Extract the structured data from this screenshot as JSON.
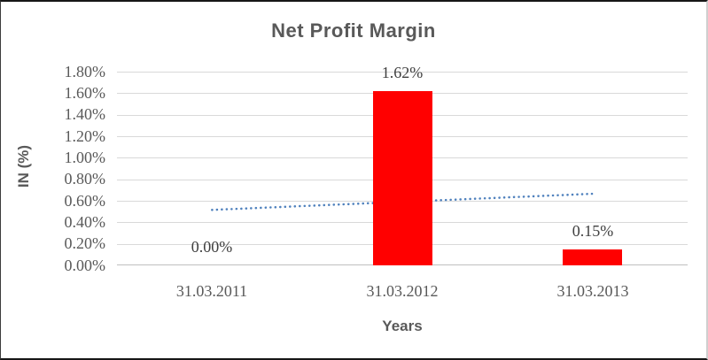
{
  "chart_data": {
    "type": "bar",
    "title": "Net Profit Margin",
    "xlabel": "Years",
    "ylabel": "IN (%)",
    "categories": [
      "31.03.2011",
      "31.03.2012",
      "31.03.2013"
    ],
    "values": [
      0.0,
      1.62,
      0.15
    ],
    "data_labels": [
      "0.00%",
      "1.62%",
      "0.15%"
    ],
    "y_ticks": [
      "1.80%",
      "1.60%",
      "1.40%",
      "1.20%",
      "1.00%",
      "0.80%",
      "0.60%",
      "0.40%",
      "0.20%",
      "0.00%"
    ],
    "ylim": [
      0,
      1.8
    ],
    "grid": true,
    "legend": "none",
    "colors": {
      "bar": "#FF0000",
      "trendline": "#4F81BD",
      "title_text": "#595959",
      "tick_text": "#595959",
      "data_label_text": "#404040",
      "gridline": "#D9D9D9",
      "axis_line": "#BFBFBF"
    },
    "trendline": {
      "type": "linear",
      "style": "dotted",
      "start_value": 0.515,
      "end_value": 0.665
    }
  }
}
